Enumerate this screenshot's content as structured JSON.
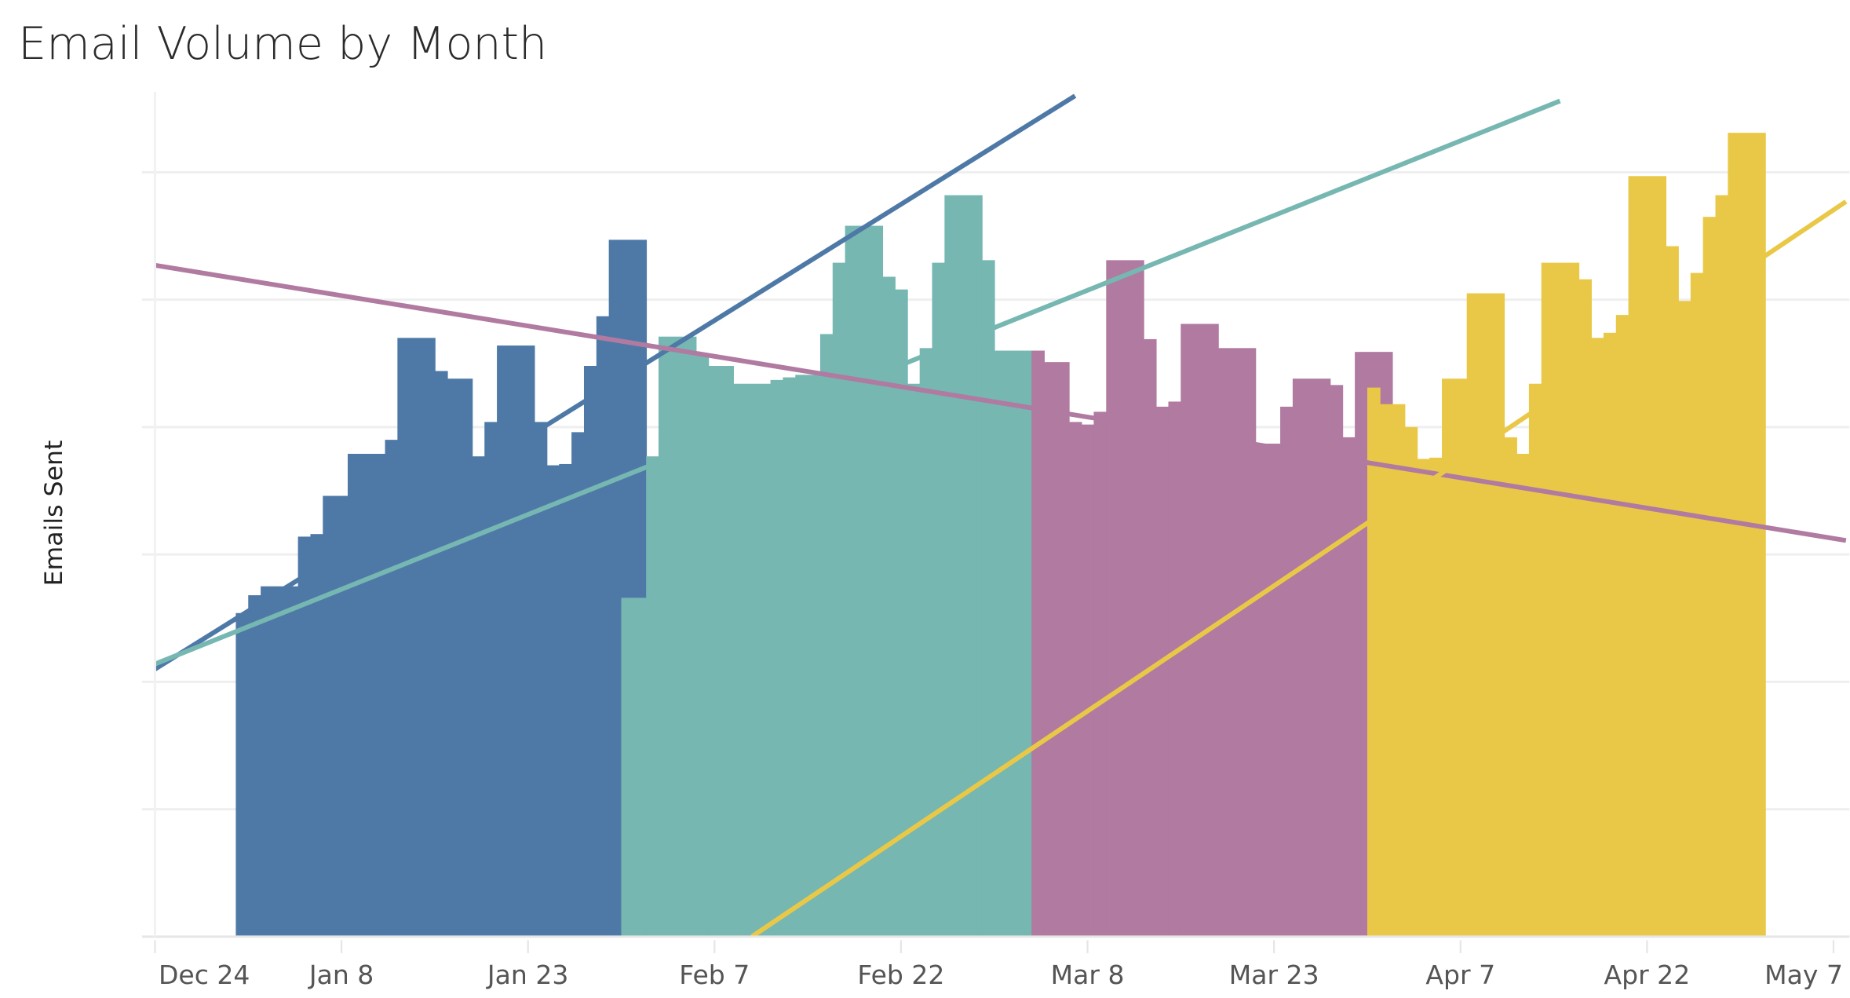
{
  "chart_data": {
    "type": "area",
    "title": "Email Volume by Month",
    "xlabel": "",
    "ylabel": "Emails Sent",
    "y_tick_labels_shown": false,
    "grid": true,
    "legend": "none",
    "xlim": [
      "12-24",
      "05-08"
    ],
    "ylim": [
      0,
      6.63
    ],
    "x_ticks": [
      "Dec 24",
      "Jan 8",
      "Jan 23",
      "Feb 7",
      "Feb 22",
      "Mar 8",
      "Mar 23",
      "Apr 7",
      "Apr 22",
      "May 7"
    ],
    "x_tick_dates": [
      "12-24",
      "01-08",
      "01-23",
      "02-07",
      "02-22",
      "03-08",
      "03-23",
      "04-07",
      "04-22",
      "05-07"
    ],
    "series": [
      {
        "color": "#4E79A7",
        "end": "02-01",
        "steps": [
          [
            "12-31",
            2.54
          ],
          [
            "01-01",
            2.68
          ],
          [
            "01-02",
            2.75
          ],
          [
            "01-05",
            3.14
          ],
          [
            "01-06",
            3.16
          ],
          [
            "01-07",
            3.46
          ],
          [
            "01-09",
            3.79
          ],
          [
            "01-12",
            3.9
          ],
          [
            "01-13",
            4.7
          ],
          [
            "01-16",
            4.44
          ],
          [
            "01-17",
            4.38
          ],
          [
            "01-19",
            3.77
          ],
          [
            "01-20",
            4.04
          ],
          [
            "01-21",
            4.64
          ],
          [
            "01-24",
            4.04
          ],
          [
            "01-25",
            3.7
          ],
          [
            "01-26",
            3.71
          ],
          [
            "01-27",
            3.96
          ],
          [
            "01-28",
            4.48
          ],
          [
            "01-29",
            4.87
          ],
          [
            "01-30",
            5.47
          ]
        ],
        "trend": [
          [
            "12-24",
            2.1
          ],
          [
            "03-07",
            6.6
          ]
        ]
      },
      {
        "color": "#76B7B2",
        "end": "03-03",
        "steps": [
          [
            "01-31",
            2.66
          ],
          [
            "02-02",
            3.77
          ],
          [
            "02-03",
            4.71
          ],
          [
            "02-06",
            4.57
          ],
          [
            "02-07",
            4.48
          ],
          [
            "02-09",
            4.34
          ],
          [
            "02-12",
            4.37
          ],
          [
            "02-13",
            4.39
          ],
          [
            "02-14",
            4.41
          ],
          [
            "02-16",
            4.73
          ],
          [
            "02-17",
            5.29
          ],
          [
            "02-18",
            5.58
          ],
          [
            "02-21",
            5.18
          ],
          [
            "02-22",
            5.08
          ],
          [
            "02-23",
            4.34
          ],
          [
            "02-24",
            4.62
          ],
          [
            "02-25",
            5.29
          ],
          [
            "02-26",
            5.82
          ],
          [
            "02-29",
            5.31
          ],
          [
            "03-01",
            4.6
          ]
        ],
        "trend": [
          [
            "12-24",
            2.14
          ],
          [
            "04-15",
            6.56
          ]
        ]
      },
      {
        "color": "#B07AA1",
        "end": "04-01",
        "steps": [
          [
            "03-04",
            4.6
          ],
          [
            "03-05",
            4.51
          ],
          [
            "03-07",
            4.04
          ],
          [
            "03-08",
            4.02
          ],
          [
            "03-09",
            4.12
          ],
          [
            "03-10",
            5.31
          ],
          [
            "03-13",
            4.69
          ],
          [
            "03-14",
            4.16
          ],
          [
            "03-15",
            4.2
          ],
          [
            "03-16",
            4.81
          ],
          [
            "03-19",
            4.62
          ],
          [
            "03-22",
            3.87
          ],
          [
            "03-24",
            4.16
          ],
          [
            "03-25",
            4.38
          ],
          [
            "03-28",
            4.33
          ],
          [
            "03-29",
            3.92
          ],
          [
            "03-30",
            4.59
          ]
        ],
        "trend": [
          [
            "12-24",
            5.27
          ],
          [
            "05-08",
            3.11
          ]
        ]
      },
      {
        "color": "#EAC847",
        "end": "05-01",
        "steps": [
          [
            "03-31",
            4.31
          ],
          [
            "04-01",
            4.18
          ],
          [
            "04-03",
            4.0
          ],
          [
            "04-04",
            3.75
          ],
          [
            "04-05",
            3.76
          ],
          [
            "04-06",
            4.38
          ],
          [
            "04-08",
            5.05
          ],
          [
            "04-11",
            3.92
          ],
          [
            "04-12",
            3.79
          ],
          [
            "04-13",
            4.34
          ],
          [
            "04-14",
            5.29
          ],
          [
            "04-17",
            5.16
          ],
          [
            "04-18",
            4.7
          ],
          [
            "04-19",
            4.74
          ],
          [
            "04-20",
            4.88
          ],
          [
            "04-21",
            5.97
          ],
          [
            "04-24",
            5.42
          ],
          [
            "04-25",
            4.99
          ],
          [
            "04-26",
            5.21
          ],
          [
            "04-27",
            5.65
          ],
          [
            "04-28",
            5.82
          ],
          [
            "04-29",
            6.31
          ]
        ],
        "trend": [
          [
            "02-10",
            0
          ],
          [
            "05-08",
            5.77
          ]
        ]
      }
    ]
  }
}
